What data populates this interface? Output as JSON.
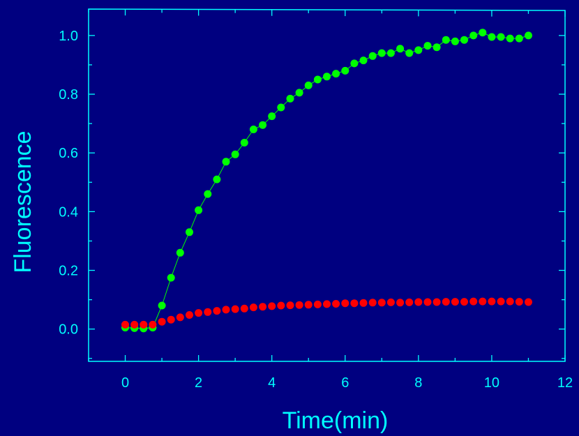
{
  "colors": {
    "background": "#000080",
    "axis": "#00FFFF",
    "text": "#00FFFF",
    "series_green": "#00FF00",
    "series_red": "#FF0000"
  },
  "chart_data": {
    "type": "scatter",
    "title": "",
    "xlabel": "Time(min)",
    "ylabel": "Fluorescence",
    "xlim": [
      -1,
      12
    ],
    "ylim": [
      -0.11,
      1.09
    ],
    "x_ticks": [
      0,
      2,
      4,
      6,
      8,
      10,
      12
    ],
    "y_ticks": [
      0.0,
      0.2,
      0.4,
      0.6,
      0.8,
      1.0
    ],
    "x_tick_labels": [
      "0",
      "2",
      "4",
      "6",
      "8",
      "10",
      "12"
    ],
    "y_tick_labels": [
      "0.0",
      "0.2",
      "0.4",
      "0.6",
      "0.8",
      "1.0"
    ],
    "grid": false,
    "legend": "none",
    "series": [
      {
        "color": "#00FF00",
        "line": true,
        "x": [
          0,
          0.25,
          0.5,
          0.75,
          1,
          1.25,
          1.5,
          1.75,
          2,
          2.25,
          2.5,
          2.75,
          3,
          3.25,
          3.5,
          3.75,
          4,
          4.25,
          4.5,
          4.75,
          5,
          5.25,
          5.5,
          5.75,
          6,
          6.25,
          6.5,
          6.75,
          7,
          7.25,
          7.5,
          7.75,
          8,
          8.25,
          8.5,
          8.75,
          9,
          9.25,
          9.5,
          9.75,
          10,
          10.25,
          10.5,
          10.75,
          11
        ],
        "y": [
          0.005,
          0.003,
          0.002,
          0.005,
          0.08,
          0.175,
          0.26,
          0.33,
          0.405,
          0.46,
          0.51,
          0.57,
          0.595,
          0.635,
          0.68,
          0.695,
          0.725,
          0.755,
          0.785,
          0.805,
          0.83,
          0.85,
          0.86,
          0.87,
          0.88,
          0.905,
          0.915,
          0.93,
          0.94,
          0.94,
          0.955,
          0.94,
          0.95,
          0.965,
          0.96,
          0.985,
          0.98,
          0.985,
          1.0,
          1.01,
          0.995,
          0.995,
          0.99,
          0.99,
          1.0
        ]
      },
      {
        "color": "#FF0000",
        "line": false,
        "x": [
          0,
          0.25,
          0.5,
          0.75,
          1,
          1.25,
          1.5,
          1.75,
          2,
          2.25,
          2.5,
          2.75,
          3,
          3.25,
          3.5,
          3.75,
          4,
          4.25,
          4.5,
          4.75,
          5,
          5.25,
          5.5,
          5.75,
          6,
          6.25,
          6.5,
          6.75,
          7,
          7.25,
          7.5,
          7.75,
          8,
          8.25,
          8.5,
          8.75,
          9,
          9.25,
          9.5,
          9.75,
          10,
          10.25,
          10.5,
          10.75,
          11
        ],
        "y": [
          0.015,
          0.015,
          0.015,
          0.015,
          0.025,
          0.032,
          0.04,
          0.048,
          0.055,
          0.058,
          0.062,
          0.066,
          0.068,
          0.07,
          0.074,
          0.076,
          0.078,
          0.08,
          0.081,
          0.082,
          0.083,
          0.084,
          0.085,
          0.086,
          0.088,
          0.088,
          0.089,
          0.09,
          0.09,
          0.091,
          0.09,
          0.091,
          0.092,
          0.092,
          0.092,
          0.093,
          0.093,
          0.093,
          0.094,
          0.094,
          0.094,
          0.094,
          0.094,
          0.093,
          0.092
        ]
      }
    ]
  }
}
